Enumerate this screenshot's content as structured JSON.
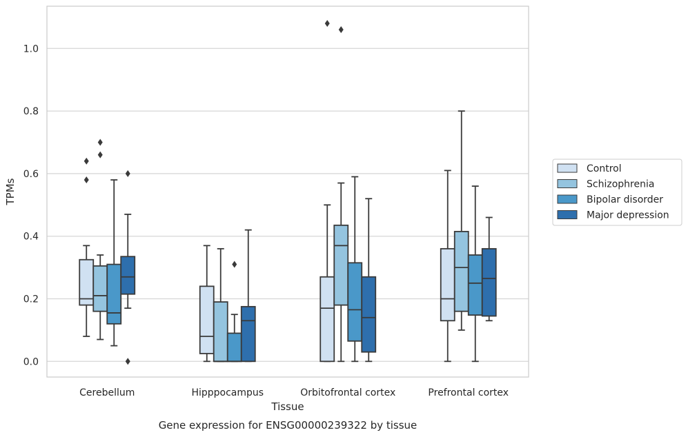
{
  "chart_data": {
    "type": "box",
    "xlabel": "Tissue",
    "ylabel": "TPMs",
    "caption": "Gene expression for ENSG00000239322 by tissue",
    "ylim": [
      -0.05,
      1.135
    ],
    "yticks": [
      "0.0",
      "0.2",
      "0.4",
      "0.6",
      "0.8",
      "1.0"
    ],
    "grid": "horizontal",
    "legend_position": "right",
    "categories": [
      "Cerebellum",
      "Hipppocampus",
      "Orbitofrontal cortex",
      "Prefrontal cortex"
    ],
    "series": [
      {
        "name": "Control",
        "color": "#d0e1f2",
        "boxes": [
          {
            "whislo": 0.08,
            "q1": 0.18,
            "med": 0.2,
            "q3": 0.325,
            "whishi": 0.37,
            "fliers": [
              0.58,
              0.64
            ]
          },
          {
            "whislo": 0.0,
            "q1": 0.025,
            "med": 0.08,
            "q3": 0.24,
            "whishi": 0.37,
            "fliers": []
          },
          {
            "whislo": 0.0,
            "q1": 0.0,
            "med": 0.17,
            "q3": 0.27,
            "whishi": 0.5,
            "fliers": [
              1.08
            ]
          },
          {
            "whislo": 0.0,
            "q1": 0.13,
            "med": 0.2,
            "q3": 0.36,
            "whishi": 0.61,
            "fliers": []
          }
        ]
      },
      {
        "name": "Schizophrenia",
        "color": "#94c4df",
        "boxes": [
          {
            "whislo": 0.07,
            "q1": 0.16,
            "med": 0.21,
            "q3": 0.305,
            "whishi": 0.34,
            "fliers": [
              0.66,
              0.7
            ]
          },
          {
            "whislo": 0.0,
            "q1": 0.0,
            "med": 0.0,
            "q3": 0.19,
            "whishi": 0.36,
            "fliers": []
          },
          {
            "whislo": 0.0,
            "q1": 0.18,
            "med": 0.37,
            "q3": 0.435,
            "whishi": 0.57,
            "fliers": [
              1.06
            ]
          },
          {
            "whislo": 0.1,
            "q1": 0.16,
            "med": 0.3,
            "q3": 0.415,
            "whishi": 0.8,
            "fliers": []
          }
        ]
      },
      {
        "name": "Bipolar disorder",
        "color": "#4a98c9",
        "boxes": [
          {
            "whislo": 0.05,
            "q1": 0.12,
            "med": 0.155,
            "q3": 0.31,
            "whishi": 0.58,
            "fliers": []
          },
          {
            "whislo": 0.0,
            "q1": 0.0,
            "med": 0.0,
            "q3": 0.09,
            "whishi": 0.15,
            "fliers": [
              0.31
            ]
          },
          {
            "whislo": 0.0,
            "q1": 0.065,
            "med": 0.165,
            "q3": 0.315,
            "whishi": 0.59,
            "fliers": []
          },
          {
            "whislo": 0.0,
            "q1": 0.148,
            "med": 0.25,
            "q3": 0.34,
            "whishi": 0.56,
            "fliers": []
          }
        ]
      },
      {
        "name": "Major depression",
        "color": "#2e6fad",
        "boxes": [
          {
            "whislo": 0.17,
            "q1": 0.215,
            "med": 0.27,
            "q3": 0.335,
            "whishi": 0.47,
            "fliers": [
              0.6,
              0.0
            ]
          },
          {
            "whislo": 0.0,
            "q1": 0.0,
            "med": 0.13,
            "q3": 0.175,
            "whishi": 0.42,
            "fliers": []
          },
          {
            "whislo": 0.0,
            "q1": 0.03,
            "med": 0.14,
            "q3": 0.27,
            "whishi": 0.52,
            "fliers": []
          },
          {
            "whislo": 0.13,
            "q1": 0.145,
            "med": 0.265,
            "q3": 0.36,
            "whishi": 0.46,
            "fliers": []
          }
        ]
      }
    ]
  }
}
